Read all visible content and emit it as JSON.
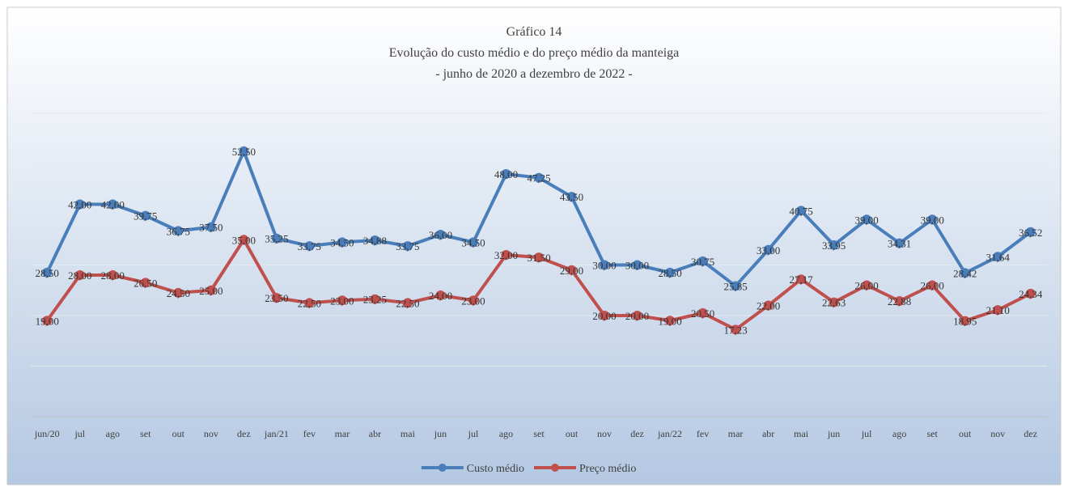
{
  "chart_data": {
    "type": "line",
    "title": "Gráfico 14",
    "subtitle": "Evolução do custo médio e do preço médio da manteiga",
    "subtitle2": "- junho de 2020 a dezembro de 2022 -",
    "categories": [
      "jun/20",
      "jul",
      "ago",
      "set",
      "out",
      "nov",
      "dez",
      "jan/21",
      "fev",
      "mar",
      "abr",
      "mai",
      "jun",
      "jul",
      "ago",
      "set",
      "out",
      "nov",
      "dez",
      "jan/22",
      "fev",
      "mar",
      "abr",
      "mai",
      "jun",
      "jul",
      "ago",
      "set",
      "out",
      "nov",
      "dez"
    ],
    "series": [
      {
        "name": "Custo médio",
        "color": "#4a7ebb",
        "values": [
          28.5,
          42.0,
          42.0,
          39.75,
          36.75,
          37.5,
          52.5,
          35.25,
          33.75,
          34.5,
          34.88,
          33.75,
          36.0,
          34.5,
          48.0,
          47.25,
          43.5,
          30.0,
          30.0,
          28.5,
          30.75,
          25.85,
          33.0,
          40.75,
          33.95,
          39.0,
          34.31,
          39.0,
          28.42,
          31.64,
          36.52
        ],
        "value_labels": [
          "28,50",
          "42,00",
          "42,00",
          "39,75",
          "36,75",
          "37,50",
          "52,50",
          "35,25",
          "33,75",
          "34,50",
          "34,88",
          "33,75",
          "36,00",
          "34,50",
          "48,00",
          "47,25",
          "43,50",
          "30,00",
          "30,00",
          "28,50",
          "30,75",
          "25,85",
          "33,00",
          "40,75",
          "33,95",
          "39,00",
          "34,31",
          "39,00",
          "28,42",
          "31,64",
          "36,52"
        ]
      },
      {
        "name": "Preço médio",
        "color": "#c0504d",
        "values": [
          19.0,
          28.0,
          28.0,
          26.5,
          24.5,
          25.0,
          35.0,
          23.5,
          22.5,
          23.0,
          23.25,
          22.5,
          24.0,
          23.0,
          32.0,
          31.5,
          29.0,
          20.0,
          20.0,
          19.0,
          20.5,
          17.23,
          22.0,
          27.17,
          22.63,
          26.0,
          22.88,
          26.0,
          18.95,
          21.1,
          24.34
        ],
        "value_labels": [
          "19,00",
          "28,00",
          "28,00",
          "26,50",
          "24,50",
          "25,00",
          "35,00",
          "23,50",
          "22,50",
          "23,00",
          "23,25",
          "22,50",
          "24,00",
          "23,00",
          "32,00",
          "31,50",
          "29,00",
          "20,00",
          "20,00",
          "19,00",
          "20,50",
          "17,23",
          "22,00",
          "27,17",
          "22,63",
          "26,00",
          "22,88",
          "26,00",
          "18,95",
          "21,10",
          "24,34"
        ]
      }
    ],
    "ylim": [
      0,
      60
    ],
    "yticks": [
      0,
      10,
      20,
      30,
      40,
      50,
      60
    ],
    "grid": true,
    "legend": "bottom"
  }
}
